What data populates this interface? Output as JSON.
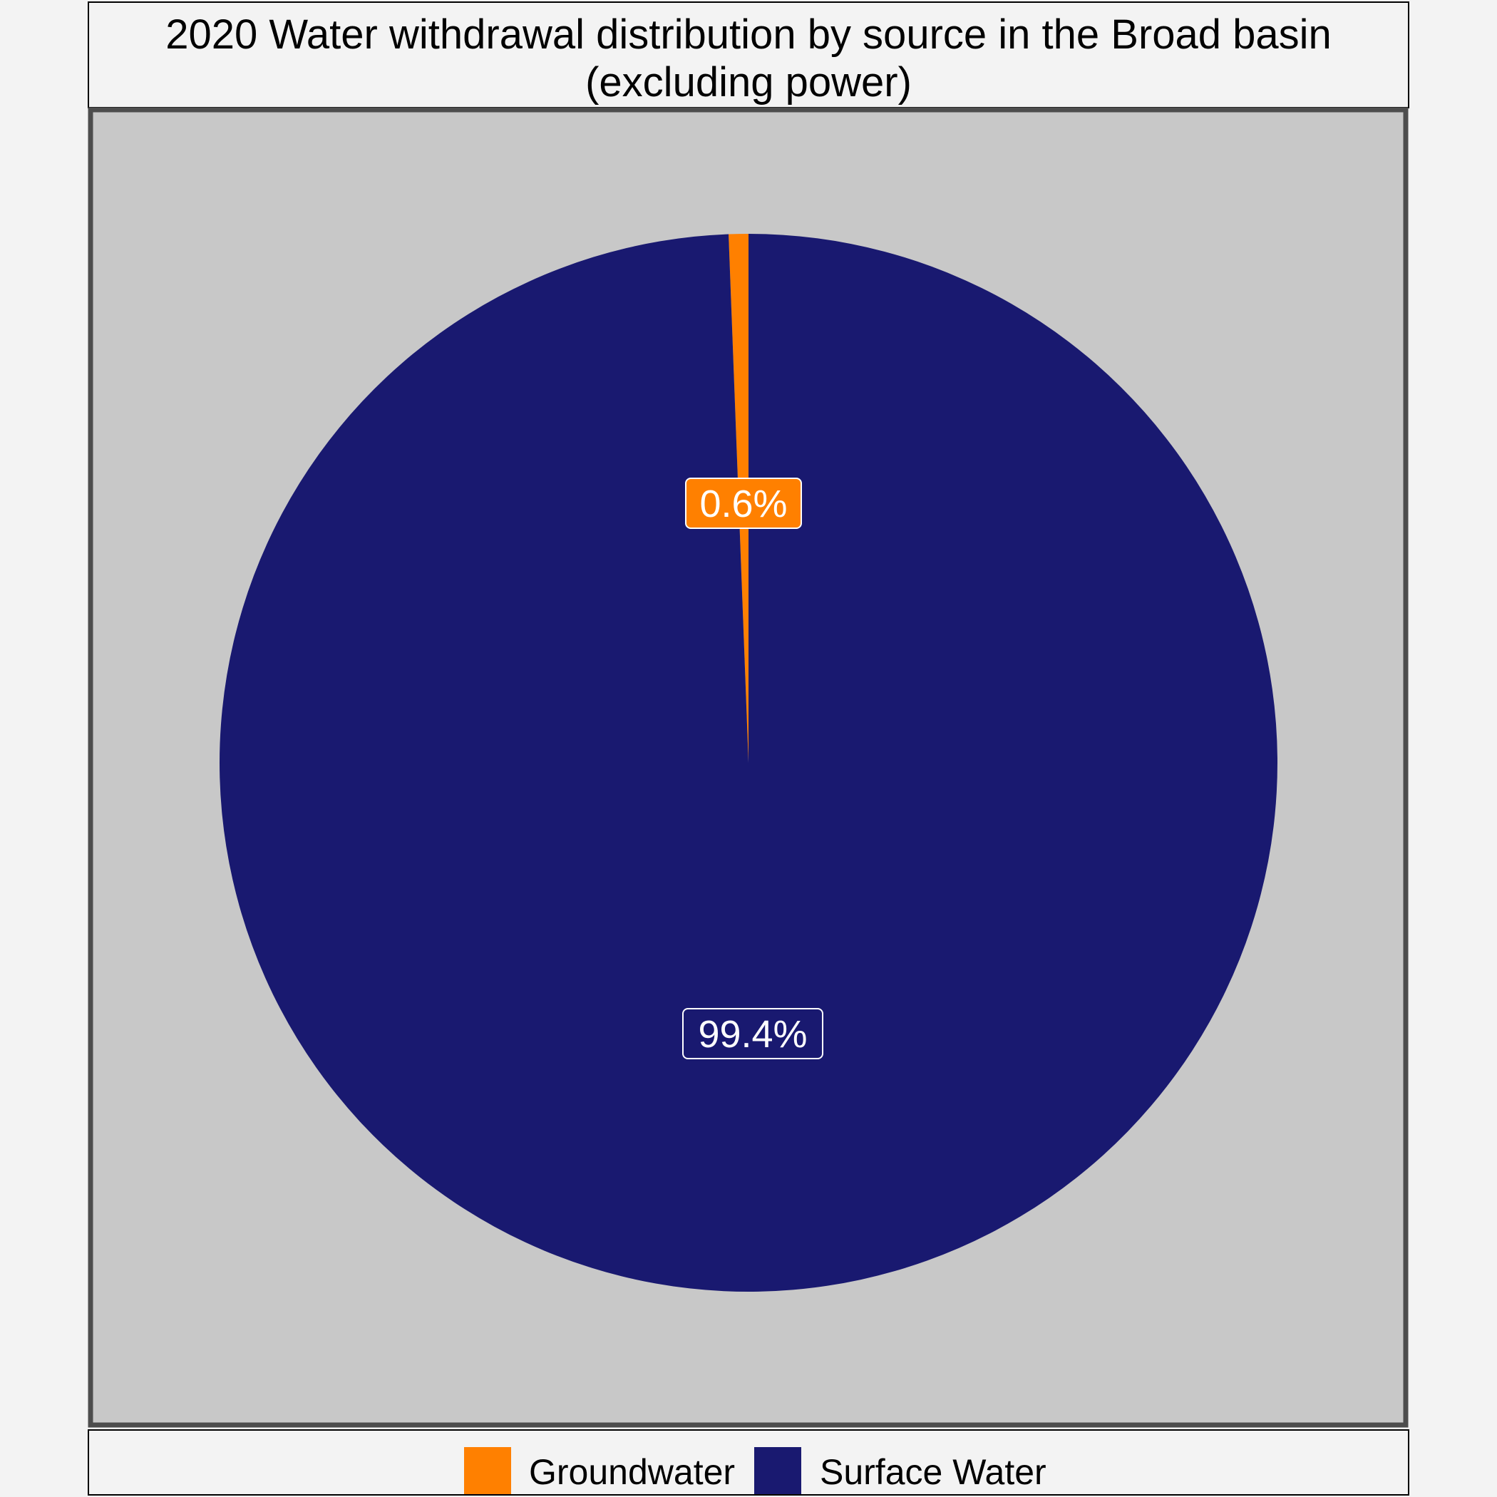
{
  "chart_data": {
    "type": "pie",
    "title": "2020 Water withdrawal distribution by source in the Broad basin",
    "subtitle": "(excluding power)",
    "slices": [
      {
        "name": "Groundwater",
        "value": 0.6,
        "label": "0.6%",
        "color": "#ff8000"
      },
      {
        "name": "Surface Water",
        "value": 99.4,
        "label": "99.4%",
        "color": "#191970"
      }
    ],
    "legend_position": "bottom",
    "panel_background": "#c8c8c8",
    "page_background": "#f3f3f3",
    "border_color": "#4d4d4d"
  }
}
